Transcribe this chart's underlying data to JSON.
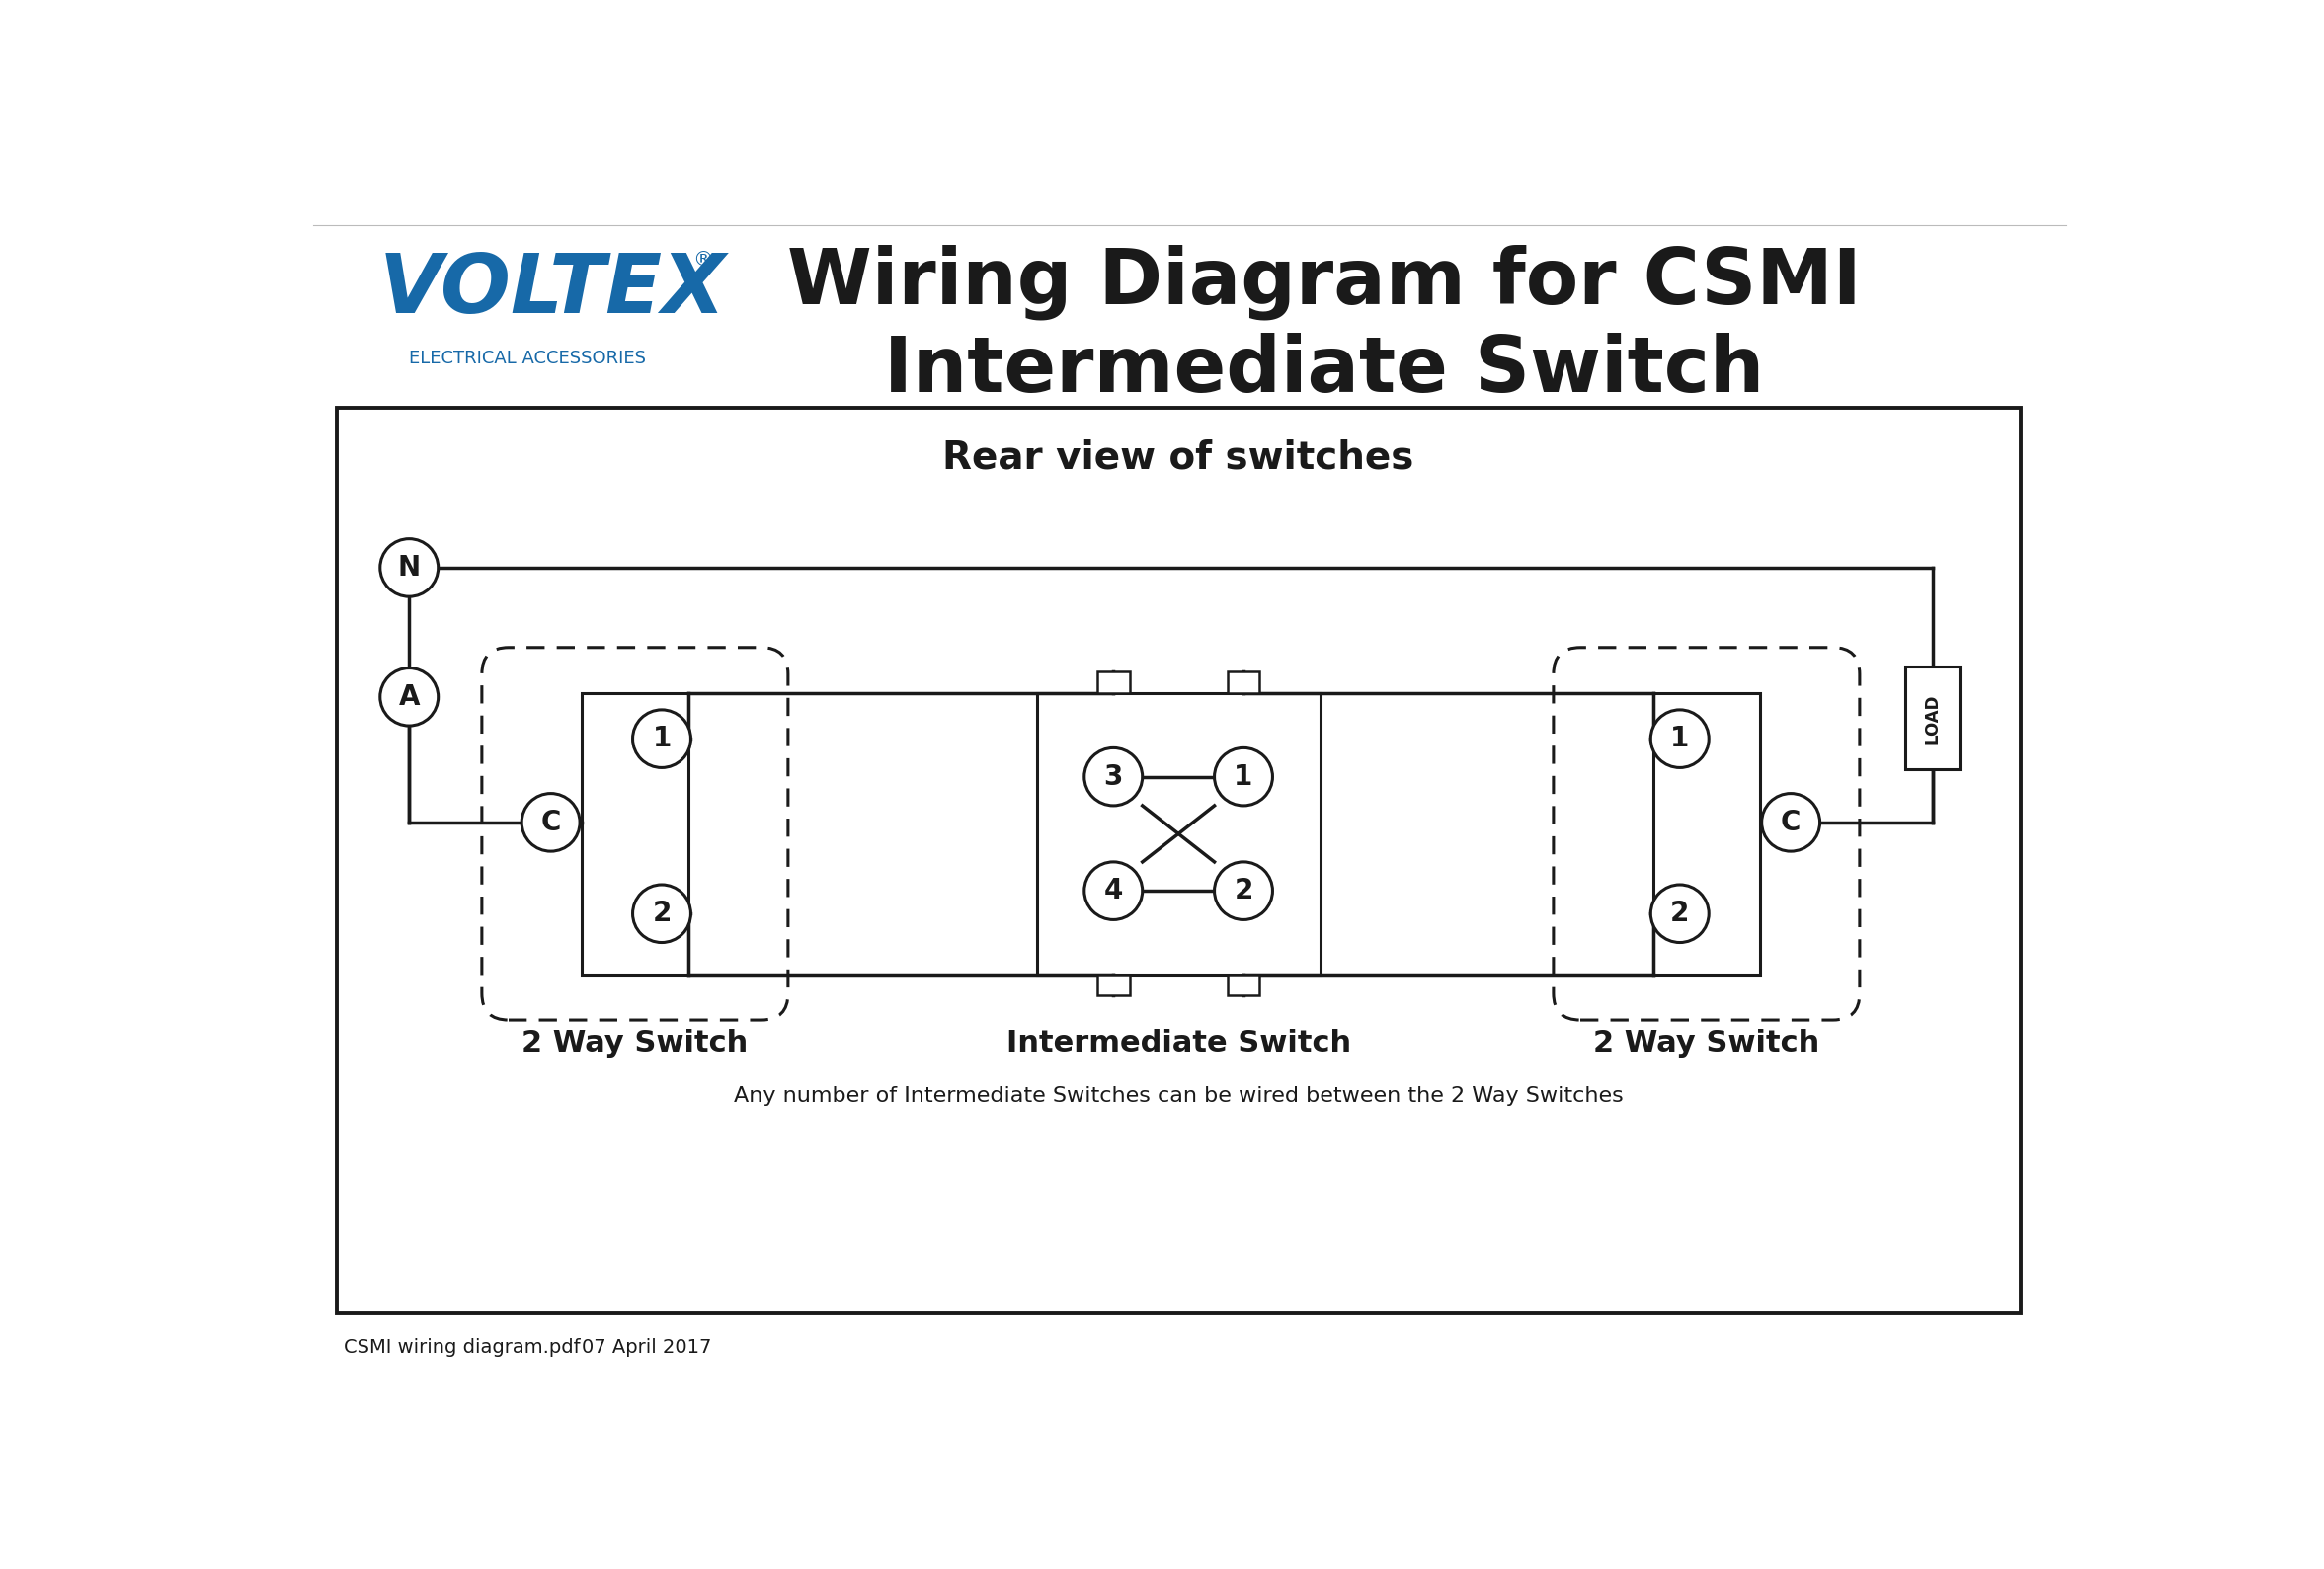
{
  "title_line1": "Wiring Diagram for CSMI",
  "title_line2": "Intermediate Switch",
  "voltex_text": "VOLTEX",
  "voltex_reg": "®",
  "voltex_sub": "ELECTRICAL ACCESSORIES",
  "voltex_color": "#1769a8",
  "title_color": "#1a1a1a",
  "diagram_title": "Rear view of switches",
  "label_2way_left": "2 Way Switch",
  "label_intermediate": "Intermediate Switch",
  "label_2way_right": "2 Way Switch",
  "footnote": "Any number of Intermediate Switches can be wired between the 2 Way Switches",
  "footer_left": "CSMI wiring diagram.pdf",
  "footer_date": "07 April 2017",
  "bg_color": "#ffffff",
  "line_color": "#1a1a1a",
  "lw": 2.5,
  "lw_thin": 1.8
}
